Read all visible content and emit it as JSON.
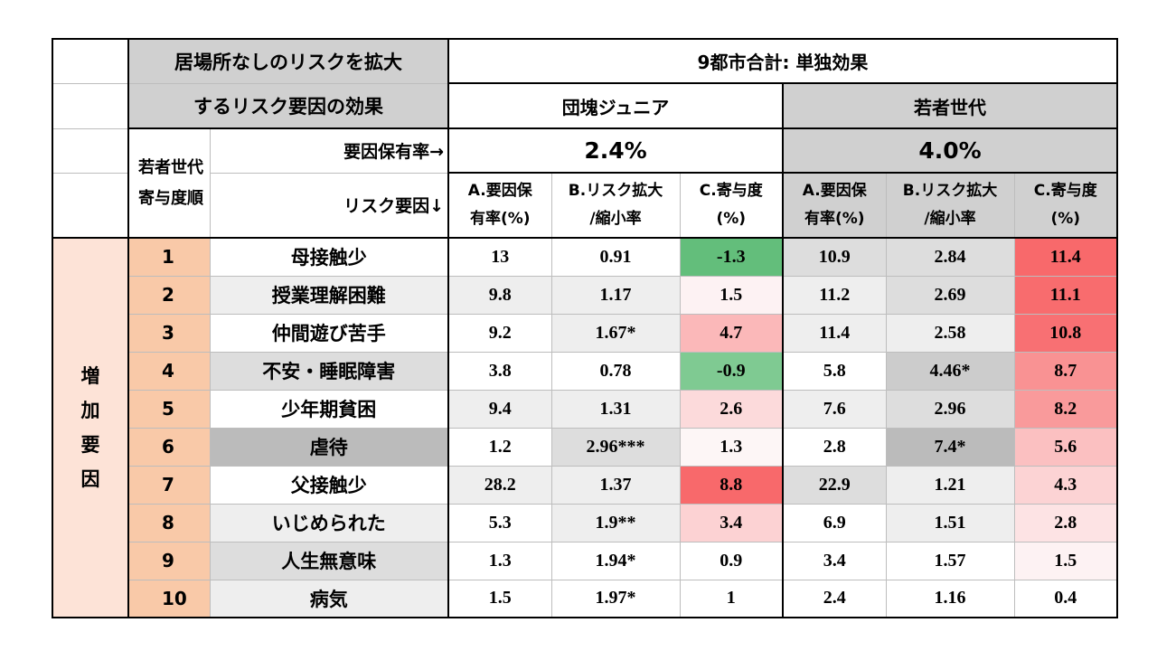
{
  "title": {
    "line1": "居場所なしのリスクを拡大",
    "line2": "するリスク要因の効果"
  },
  "scope_label": "9都市合計: 単独効果",
  "groups": {
    "junior": "団塊ジュニア",
    "young": "若者世代"
  },
  "rank_header": "若者世代寄与度順",
  "prevalence_label": "要因保有率→",
  "factor_label": "リスク要因↓",
  "prevalence_values": {
    "junior": "2.4%",
    "young": "4.0%"
  },
  "columns": {
    "a_line1": "A.要因保",
    "a_line2": "有率(%)",
    "b_line1": "B.リスク拡大",
    "b_line2": "/縮小率",
    "c_line1": "C.寄与度",
    "c_line2": "(%)"
  },
  "side_label": "増加要因",
  "rows": [
    {
      "rank": "1",
      "factor": "母接触少",
      "j_a": "13",
      "j_b": "0.91",
      "j_c": "-1.3",
      "y_a": "10.9",
      "y_b": "2.84",
      "y_c": "11.4"
    },
    {
      "rank": "2",
      "factor": "授業理解困難",
      "j_a": "9.8",
      "j_b": "1.17",
      "j_c": "1.5",
      "y_a": "11.2",
      "y_b": "2.69",
      "y_c": "11.1"
    },
    {
      "rank": "3",
      "factor": "仲間遊び苦手",
      "j_a": "9.2",
      "j_b": "1.67*",
      "j_c": "4.7",
      "y_a": "11.4",
      "y_b": "2.58",
      "y_c": "10.8"
    },
    {
      "rank": "4",
      "factor": "不安・睡眠障害",
      "j_a": "3.8",
      "j_b": "0.78",
      "j_c": "-0.9",
      "y_a": "5.8",
      "y_b": "4.46*",
      "y_c": "8.7"
    },
    {
      "rank": "5",
      "factor": "少年期貧困",
      "j_a": "9.4",
      "j_b": "1.31",
      "j_c": "2.6",
      "y_a": "7.6",
      "y_b": "2.96",
      "y_c": "8.2"
    },
    {
      "rank": "6",
      "factor": "虐待",
      "j_a": "1.2",
      "j_b": "2.96***",
      "j_c": "1.3",
      "y_a": "2.8",
      "y_b": "7.4*",
      "y_c": "5.6"
    },
    {
      "rank": "7",
      "factor": "父接触少",
      "j_a": "28.2",
      "j_b": "1.37",
      "j_c": "8.8",
      "y_a": "22.9",
      "y_b": "1.21",
      "y_c": "4.3"
    },
    {
      "rank": "8",
      "factor": "いじめられた",
      "j_a": "5.3",
      "j_b": "1.9**",
      "j_c": "3.4",
      "y_a": "6.9",
      "y_b": "1.51",
      "y_c": "2.8"
    },
    {
      "rank": "9",
      "factor": "人生無意味",
      "j_a": "1.3",
      "j_b": "1.94*",
      "j_c": "0.9",
      "y_a": "3.4",
      "y_b": "1.57",
      "y_c": "1.5"
    },
    {
      "rank": "10",
      "factor": "病気",
      "j_a": "1.5",
      "j_b": "1.97*",
      "j_c": "1",
      "y_a": "2.4",
      "y_b": "1.16",
      "y_c": "0.4"
    }
  ],
  "colors": {
    "header_gray": "#d0d0d0",
    "rank_peach": "#f9c9a8",
    "side_pink": "#fde3d7",
    "negative_green": "#63be7b",
    "positive_red": "#f8696b"
  },
  "row_fills": [
    {
      "factor": "#ffffff",
      "j_a": "#ffffff",
      "j_b": "#ffffff",
      "j_c": "#63be7b",
      "y_a": "#dddddd",
      "y_b": "#dddddd",
      "y_c": "#f8696b"
    },
    {
      "factor": "#eeeeee",
      "j_a": "#eeeeee",
      "j_b": "#eeeeee",
      "j_c": "#fdf2f3",
      "y_a": "#eeeeee",
      "y_b": "#dddddd",
      "y_c": "#f86c6e"
    },
    {
      "factor": "#ffffff",
      "j_a": "#ffffff",
      "j_b": "#eeeeee",
      "j_c": "#fbb8b9",
      "y_a": "#eeeeee",
      "y_b": "#eeeeee",
      "y_c": "#f87073"
    },
    {
      "factor": "#dddddd",
      "j_a": "#ffffff",
      "j_b": "#ffffff",
      "j_c": "#7fca92",
      "y_a": "#ffffff",
      "y_b": "#cccccc",
      "y_c": "#f99293"
    },
    {
      "factor": "#ffffff",
      "j_a": "#eeeeee",
      "j_b": "#eeeeee",
      "j_c": "#fcdadb",
      "y_a": "#eeeeee",
      "y_b": "#dddddd",
      "y_c": "#f99a9b"
    },
    {
      "factor": "#bbbbbb",
      "j_a": "#ffffff",
      "j_b": "#dddddd",
      "j_c": "#fdf6f6",
      "y_a": "#ffffff",
      "y_b": "#bbbbbb",
      "y_c": "#fbc0c1"
    },
    {
      "factor": "#ffffff",
      "j_a": "#eeeeee",
      "j_b": "#eeeeee",
      "j_c": "#f8696b",
      "y_a": "#dddddd",
      "y_b": "#eeeeee",
      "y_c": "#fcd3d4"
    },
    {
      "factor": "#eeeeee",
      "j_a": "#ffffff",
      "j_b": "#eeeeee",
      "j_c": "#fcd2d3",
      "y_a": "#ffffff",
      "y_b": "#eeeeee",
      "y_c": "#fde3e4"
    },
    {
      "factor": "#dddddd",
      "j_a": "#ffffff",
      "j_b": "#ffffff",
      "j_c": "#ffffff",
      "y_a": "#ffffff",
      "y_b": "#ffffff",
      "y_c": "#fdf2f3"
    },
    {
      "factor": "#eeeeee",
      "j_a": "#ffffff",
      "j_b": "#ffffff",
      "j_c": "#ffffff",
      "y_a": "#ffffff",
      "y_b": "#ffffff",
      "y_c": "#ffffff"
    }
  ]
}
